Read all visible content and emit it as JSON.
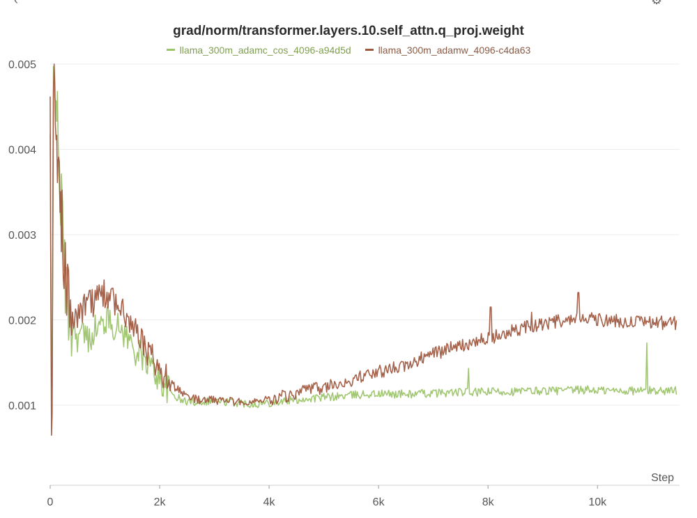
{
  "chart_data": {
    "type": "line",
    "title": "grad/norm/transformer.layers.10.self_attn.q_proj.weight",
    "xlabel": "Step",
    "ylabel": "",
    "xlim": [
      0,
      11500
    ],
    "ylim": [
      6e-05,
      0.005
    ],
    "x_ticks": [
      0,
      2000,
      4000,
      6000,
      8000,
      10000
    ],
    "x_tick_labels": [
      "0",
      "2k",
      "4k",
      "6k",
      "8k",
      "10k"
    ],
    "y_ticks": [
      0.001,
      0.002,
      0.003,
      0.004,
      0.005
    ],
    "y_tick_labels": [
      "0.001",
      "0.002",
      "0.003",
      "0.004",
      "0.005"
    ],
    "grid": true,
    "legend_position": "top-center",
    "series": [
      {
        "name": "llama_300m_adamc_cos_4096-a94d5d",
        "color": "#9cc46a",
        "x": [
          0,
          30,
          60,
          100,
          150,
          200,
          250,
          300,
          400,
          500,
          600,
          700,
          800,
          900,
          1000,
          1100,
          1200,
          1300,
          1400,
          1500,
          1600,
          1700,
          1800,
          1900,
          2000,
          2200,
          2400,
          2600,
          2800,
          3000,
          3200,
          3400,
          3600,
          3800,
          4000,
          4300,
          4600,
          5000,
          5400,
          5800,
          6200,
          6600,
          7000,
          7400,
          7800,
          8200,
          8600,
          9000,
          9400,
          9800,
          10200,
          10600,
          11000,
          11450
        ],
        "y": [
          0.0041,
          8e-05,
          0.0048,
          0.005,
          0.0038,
          0.0034,
          0.0028,
          0.0022,
          0.00195,
          0.0018,
          0.00185,
          0.00175,
          0.0019,
          0.0019,
          0.002,
          0.002,
          0.0019,
          0.0019,
          0.0018,
          0.0017,
          0.0016,
          0.00155,
          0.0015,
          0.0014,
          0.0013,
          0.00115,
          0.00105,
          0.00104,
          0.00105,
          0.00105,
          0.00104,
          0.00103,
          0.00102,
          0.00102,
          0.00103,
          0.00105,
          0.00107,
          0.00109,
          0.00111,
          0.00113,
          0.00113,
          0.00113,
          0.00114,
          0.00115,
          0.00115,
          0.00116,
          0.00116,
          0.00117,
          0.00117,
          0.00118,
          0.00117,
          0.00117,
          0.00117,
          0.00117
        ],
        "spikes": [
          [
            7650,
            0.00143
          ],
          [
            10900,
            0.00173
          ]
        ]
      },
      {
        "name": "llama_300m_adamw_4096-c4da63",
        "color": "#a0583f",
        "x": [
          0,
          30,
          60,
          100,
          150,
          200,
          250,
          300,
          400,
          500,
          600,
          700,
          800,
          900,
          1000,
          1100,
          1200,
          1300,
          1400,
          1500,
          1600,
          1700,
          1800,
          1900,
          2000,
          2200,
          2400,
          2600,
          2800,
          3000,
          3200,
          3400,
          3600,
          3800,
          4000,
          4300,
          4600,
          5000,
          5400,
          5800,
          6200,
          6600,
          7000,
          7400,
          7800,
          8200,
          8600,
          9000,
          9400,
          9800,
          10200,
          10600,
          11000,
          11450
        ],
        "y": [
          0.0045,
          8e-05,
          0.0048,
          0.0044,
          0.0038,
          0.0032,
          0.0028,
          0.0025,
          0.0021,
          0.002,
          0.0021,
          0.0022,
          0.0022,
          0.0023,
          0.0023,
          0.0022,
          0.0022,
          0.0021,
          0.002,
          0.0019,
          0.0018,
          0.0017,
          0.0016,
          0.0015,
          0.0014,
          0.00125,
          0.00115,
          0.00108,
          0.00105,
          0.00106,
          0.00105,
          0.00104,
          0.00104,
          0.00105,
          0.00108,
          0.0011,
          0.00115,
          0.00121,
          0.00127,
          0.00135,
          0.00142,
          0.0015,
          0.0016,
          0.00168,
          0.00175,
          0.00182,
          0.0019,
          0.00195,
          0.002,
          0.00202,
          0.00199,
          0.00198,
          0.00197,
          0.00196
        ],
        "spikes": [
          [
            8050,
            0.00215
          ],
          [
            9650,
            0.00232
          ],
          [
            8800,
            0.00209
          ]
        ]
      }
    ]
  }
}
